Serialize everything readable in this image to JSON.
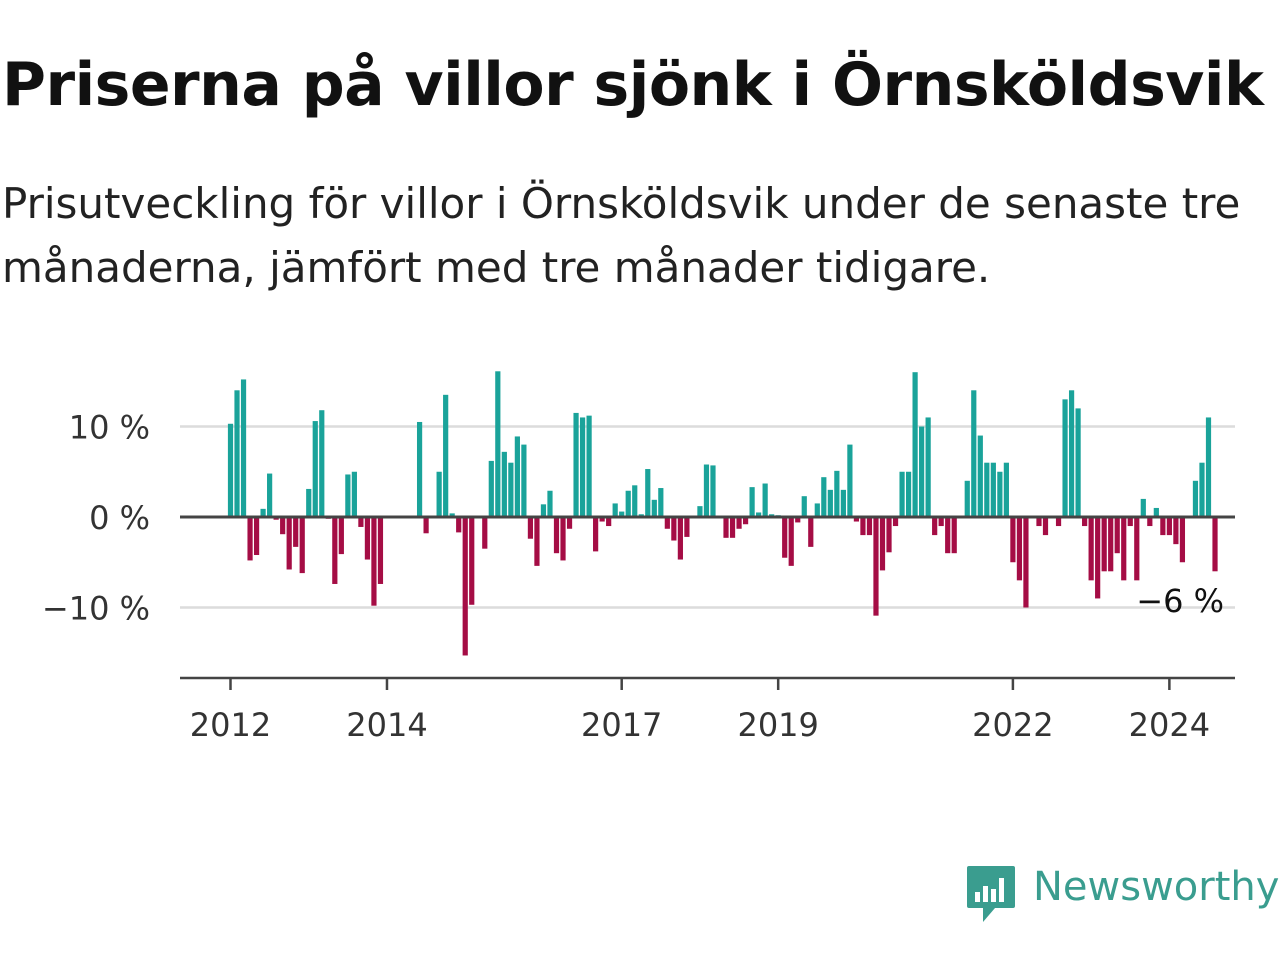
{
  "header": {
    "title": "Priserna på villor sjönk i Örnsköldsvik",
    "subtitle": "Prisutveckling för villor i Örnsköldsvik under de senaste tre månaderna, jämfört med tre månader tidigare."
  },
  "logo": {
    "text": "Newsworthy",
    "icon": "bar-chart-speech-bubble-icon"
  },
  "colors": {
    "positive": "#1aa39a",
    "negative": "#a50d45",
    "baseline": "#444444",
    "grid": "#dcdcdc"
  },
  "chart_data": {
    "type": "bar",
    "x_start": "2012-01",
    "x_step": "month",
    "ylim": [
      -18,
      18
    ],
    "yticks": [
      10,
      0,
      -10
    ],
    "ytick_labels": [
      "10 %",
      "0 %",
      "−10 %"
    ],
    "xticks": [
      "2012",
      "2014",
      "2017",
      "2019",
      "2022",
      "2024"
    ],
    "annotation": "−6 %",
    "grid": true,
    "values": [
      10.3,
      14,
      15.2,
      -4.8,
      -4.2,
      0.9,
      4.8,
      -0.3,
      -1.9,
      -5.8,
      -3.3,
      -6.2,
      3.1,
      10.6,
      11.8,
      -0.2,
      -7.4,
      -4.1,
      4.7,
      5.0,
      -1.1,
      -4.7,
      -9.8,
      -7.4,
      0,
      0,
      0,
      0,
      0,
      10.5,
      -1.8,
      0,
      5.0,
      13.5,
      0.4,
      -1.7,
      -15.3,
      -9.7,
      0,
      -3.5,
      6.2,
      16.1,
      7.2,
      6.0,
      8.9,
      8.0,
      -2.4,
      -5.4,
      1.4,
      2.9,
      -4.0,
      -4.8,
      -1.3,
      11.5,
      11.0,
      11.2,
      -3.8,
      -0.5,
      -1.0,
      1.5,
      0.6,
      2.9,
      3.5,
      0.3,
      5.3,
      1.9,
      3.2,
      -1.3,
      -2.6,
      -4.7,
      -2.2,
      0,
      1.2,
      5.8,
      5.7,
      0,
      -2.3,
      -2.3,
      -1.3,
      -0.8,
      3.3,
      0.5,
      3.7,
      0.3,
      0.2,
      -4.5,
      -5.4,
      -0.6,
      2.3,
      -3.3,
      1.5,
      4.4,
      3.0,
      5.1,
      3.0,
      8.0,
      -0.5,
      -2.0,
      -2.0,
      -10.9,
      -5.9,
      -3.9,
      -1.0,
      5.0,
      5.0,
      16.0,
      10.0,
      11.0,
      -2.0,
      -1.0,
      -4.0,
      -4.0,
      0,
      4.0,
      14.0,
      9.0,
      6.0,
      6.0,
      5.0,
      6.0,
      -5.0,
      -7.0,
      -10.0,
      0,
      -1.0,
      -2.0,
      0,
      -1.0,
      13.0,
      14.0,
      12.0,
      -1.0,
      -7.0,
      -9.0,
      -6.0,
      -6.0,
      -4.0,
      -7.0,
      -1.0,
      -7.0,
      2.0,
      -1.0,
      1.0,
      -2.0,
      -2.0,
      -3.0,
      -5.0,
      0,
      4.0,
      6.0,
      11.0,
      -6.0
    ]
  }
}
